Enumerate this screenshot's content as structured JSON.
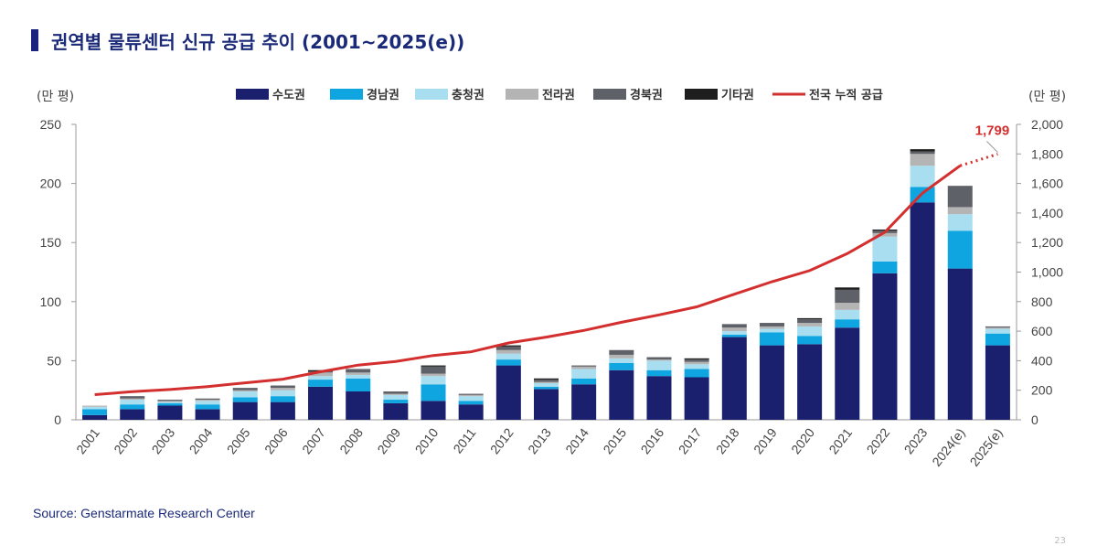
{
  "title": "권역별 물류센터 신규 공급 추이 (2001~2025(e))",
  "source": "Source: Genstarmate Research Center",
  "page_number": "23",
  "colors": {
    "title_bar": "#1a237e",
    "series": [
      "#1a1f6e",
      "#0ea5e0",
      "#a8def0",
      "#b4b4b4",
      "#5f6168",
      "#1e1e1e"
    ],
    "line": "#d32f2f",
    "annotation": "#d32f2f"
  },
  "chart_data": {
    "type": "bar",
    "stacked": true,
    "categories": [
      "2001",
      "2002",
      "2003",
      "2004",
      "2005",
      "2006",
      "2007",
      "2008",
      "2009",
      "2010",
      "2011",
      "2012",
      "2013",
      "2014",
      "2015",
      "2016",
      "2017",
      "2018",
      "2019",
      "2020",
      "2021",
      "2022",
      "2023",
      "2024(e)",
      "2025(e)"
    ],
    "series": [
      {
        "name": "수도권",
        "values": [
          4,
          9,
          12,
          9,
          15,
          15,
          28,
          24,
          14,
          16,
          13,
          46,
          26,
          30,
          42,
          37,
          36,
          70,
          63,
          64,
          78,
          124,
          184,
          128,
          63
        ]
      },
      {
        "name": "경남권",
        "values": [
          5,
          4,
          2,
          4,
          4,
          5,
          6,
          11,
          3,
          14,
          3,
          5,
          2,
          5,
          6,
          5,
          7,
          2,
          11,
          7,
          7,
          10,
          13,
          32,
          10
        ]
      },
      {
        "name": "충청권",
        "values": [
          2,
          4,
          1,
          3,
          5,
          5,
          3,
          3,
          4,
          7,
          4,
          5,
          3,
          8,
          4,
          8,
          4,
          3,
          3,
          8,
          8,
          21,
          18,
          14,
          4
        ]
      },
      {
        "name": "전라권",
        "values": [
          1,
          1,
          1,
          1,
          1,
          2,
          3,
          2,
          1,
          2,
          1,
          3,
          1,
          2,
          3,
          1,
          2,
          3,
          2,
          3,
          6,
          3,
          10,
          6,
          1
        ]
      },
      {
        "name": "경북권",
        "values": [
          0,
          2,
          1,
          1,
          2,
          2,
          1,
          3,
          2,
          6,
          1,
          3,
          2,
          1,
          4,
          2,
          2,
          3,
          3,
          3,
          11,
          2,
          2,
          18,
          1
        ]
      },
      {
        "name": "기타권",
        "values": [
          0,
          0,
          0,
          0,
          0,
          0,
          1,
          0,
          0,
          1,
          0,
          1,
          1,
          0,
          0,
          0,
          1,
          0,
          0,
          1,
          2,
          1,
          2,
          0,
          0
        ]
      }
    ],
    "line": {
      "name": "전국 누적 공급",
      "axis": "right",
      "values": [
        170,
        190,
        205,
        225,
        250,
        275,
        325,
        370,
        395,
        435,
        460,
        520,
        560,
        605,
        660,
        710,
        765,
        850,
        935,
        1010,
        1125,
        1270,
        1535,
        1720,
        1799
      ],
      "projected_from_index": 23
    },
    "annotation": {
      "text": "1,799",
      "index": 24
    },
    "y_left": {
      "unit": "(만 평)",
      "min": 0,
      "max": 250,
      "ticks": [
        0,
        50,
        100,
        150,
        200,
        250
      ]
    },
    "y_right": {
      "unit": "(만 평)",
      "min": 0,
      "max": 2000,
      "ticks": [
        0,
        200,
        400,
        600,
        800,
        1000,
        1200,
        1400,
        1600,
        1800,
        2000
      ],
      "tick_labels": [
        "0",
        "200",
        "400",
        "600",
        "800",
        "1,000",
        "1,200",
        "1,400",
        "1,600",
        "1,800",
        "2,000"
      ]
    },
    "legend_position": "top-center",
    "grid": false
  }
}
